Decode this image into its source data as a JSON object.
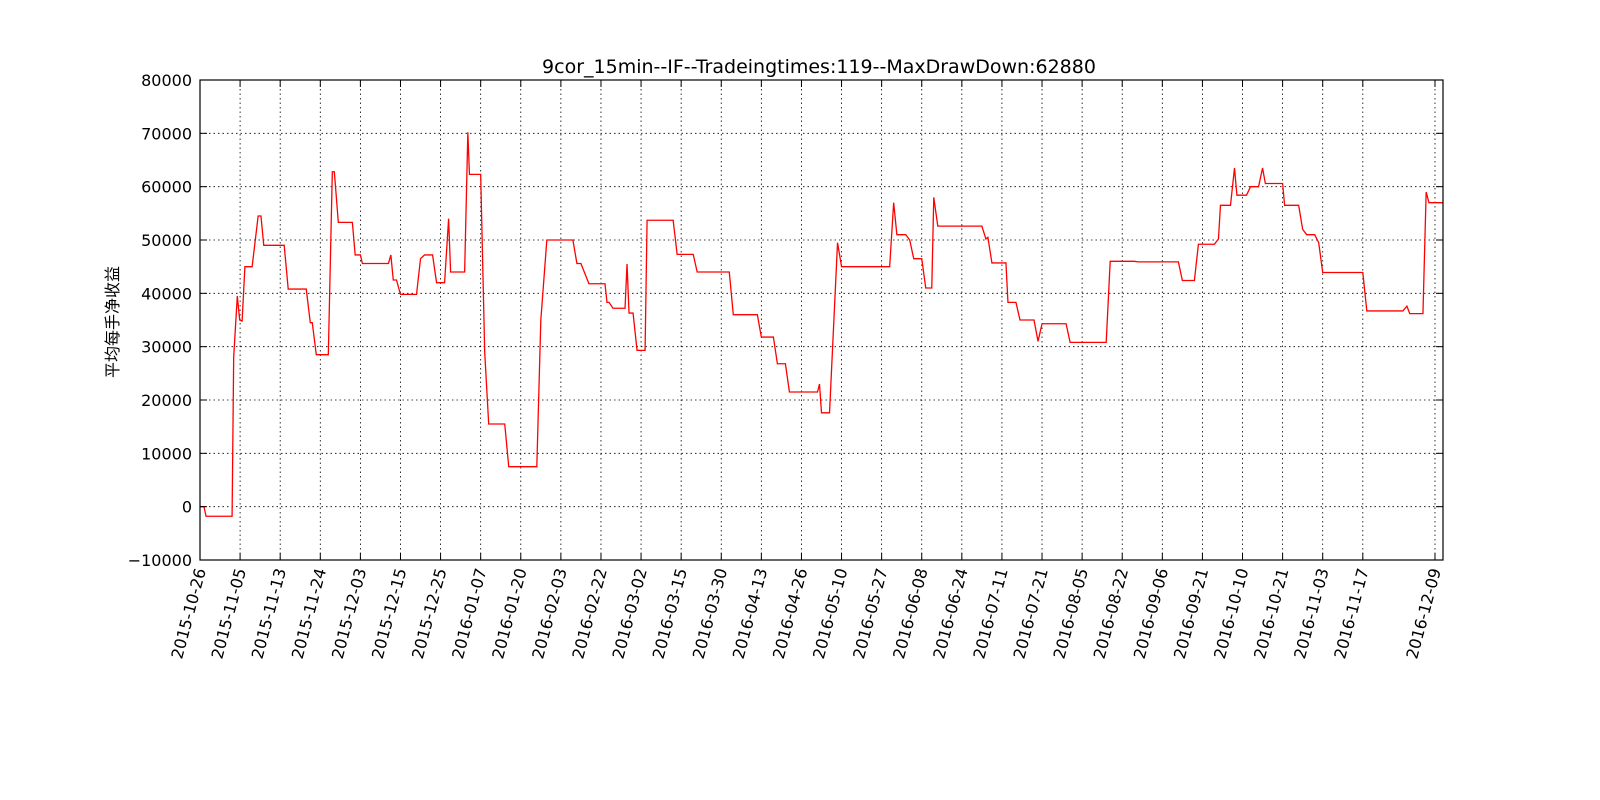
{
  "chart_data": {
    "type": "line",
    "title": "9cor_15min--IF--Tradeingtimes:119--MaxDrawDown:62880",
    "xlabel": "",
    "ylabel": "平均每手净收益",
    "ylim": [
      -10000,
      80000
    ],
    "yticks": [
      "−10000",
      "0",
      "10000",
      "20000",
      "30000",
      "40000",
      "50000",
      "60000",
      "70000",
      "80000"
    ],
    "xticks": [
      "2015-10-26",
      "2015-11-05",
      "2015-11-13",
      "2015-11-24",
      "2015-12-03",
      "2015-12-15",
      "2015-12-25",
      "2016-01-07",
      "2016-01-20",
      "2016-02-03",
      "2016-02-22",
      "2016-03-02",
      "2016-03-15",
      "2016-03-30",
      "2016-04-13",
      "2016-04-26",
      "2016-05-10",
      "2016-05-27",
      "2016-06-08",
      "2016-06-24",
      "2016-07-11",
      "2016-07-21",
      "2016-08-05",
      "2016-08-22",
      "2016-09-06",
      "2016-09-21",
      "2016-10-10",
      "2016-10-21",
      "2016-11-03",
      "2016-11-17",
      "2016-12-09"
    ],
    "x_note": "x values are trade sequence positions; tick labels mark dates at positions 0,10,...,290 and 308",
    "xlim": [
      0,
      310
    ],
    "grid": true,
    "color": "#ff0000",
    "series": [
      {
        "name": "",
        "points": [
          [
            0,
            0
          ],
          [
            1,
            0
          ],
          [
            1.5,
            -1800
          ],
          [
            3,
            -1800
          ],
          [
            8,
            -1800
          ],
          [
            8.4,
            28000
          ],
          [
            9.3,
            39500
          ],
          [
            9.9,
            35000
          ],
          [
            10.5,
            34800
          ],
          [
            11.2,
            45000
          ],
          [
            13,
            45000
          ],
          [
            14.5,
            54500
          ],
          [
            15.2,
            54500
          ],
          [
            15.9,
            49000
          ],
          [
            21,
            49000
          ],
          [
            22,
            40800
          ],
          [
            26.5,
            40800
          ],
          [
            27.5,
            34500
          ],
          [
            28,
            34500
          ],
          [
            29,
            28500
          ],
          [
            32,
            28500
          ],
          [
            33,
            62800
          ],
          [
            33.5,
            62800
          ],
          [
            34.5,
            53300
          ],
          [
            38,
            53300
          ],
          [
            38.7,
            47200
          ],
          [
            40,
            47200
          ],
          [
            40.5,
            45600
          ],
          [
            47,
            45600
          ],
          [
            47.6,
            47200
          ],
          [
            48.2,
            42500
          ],
          [
            49,
            42500
          ],
          [
            50,
            39800
          ],
          [
            54,
            39800
          ],
          [
            55,
            46500
          ],
          [
            56,
            47200
          ],
          [
            58,
            47200
          ],
          [
            59,
            42000
          ],
          [
            61,
            42000
          ],
          [
            62,
            54000
          ],
          [
            62.5,
            44000
          ],
          [
            66,
            44000
          ],
          [
            66.8,
            70200
          ],
          [
            67.2,
            62300
          ],
          [
            70,
            62300
          ],
          [
            71,
            29000
          ],
          [
            72,
            15500
          ],
          [
            76,
            15500
          ],
          [
            77,
            7500
          ],
          [
            84,
            7500
          ],
          [
            85,
            35000
          ],
          [
            86.5,
            50000
          ],
          [
            93,
            50000
          ],
          [
            94,
            45600
          ],
          [
            95,
            45600
          ],
          [
            97,
            41800
          ],
          [
            101,
            41800
          ],
          [
            101.5,
            38300
          ],
          [
            102,
            38300
          ],
          [
            103,
            37200
          ],
          [
            106,
            37200
          ],
          [
            106.5,
            45500
          ],
          [
            107,
            36300
          ],
          [
            108,
            36300
          ],
          [
            109,
            29300
          ],
          [
            111,
            29300
          ],
          [
            111.5,
            53700
          ],
          [
            118,
            53700
          ],
          [
            119,
            47300
          ],
          [
            123,
            47300
          ],
          [
            124,
            44000
          ],
          [
            132,
            44000
          ],
          [
            133,
            36000
          ],
          [
            139,
            36000
          ],
          [
            140,
            31800
          ],
          [
            143,
            31800
          ],
          [
            144,
            26800
          ],
          [
            146,
            26800
          ],
          [
            147,
            21500
          ],
          [
            154,
            21500
          ],
          [
            154.5,
            23000
          ],
          [
            155,
            17600
          ],
          [
            157,
            17600
          ],
          [
            159,
            49500
          ],
          [
            160,
            45000
          ],
          [
            172,
            45000
          ],
          [
            173,
            57000
          ],
          [
            173.8,
            51000
          ],
          [
            176,
            51000
          ],
          [
            177,
            50000
          ],
          [
            178,
            46500
          ],
          [
            180,
            46500
          ],
          [
            181,
            41000
          ],
          [
            182.5,
            41000
          ],
          [
            183,
            58000
          ],
          [
            184,
            52600
          ],
          [
            195,
            52600
          ],
          [
            196,
            50200
          ],
          [
            196.5,
            50500
          ],
          [
            197.5,
            45700
          ],
          [
            201,
            45700
          ],
          [
            201.5,
            38300
          ],
          [
            203.5,
            38300
          ],
          [
            204.5,
            35000
          ],
          [
            208,
            35000
          ],
          [
            209,
            31000
          ],
          [
            210,
            34300
          ],
          [
            216,
            34300
          ],
          [
            217,
            30800
          ],
          [
            226,
            30800
          ],
          [
            227,
            46000
          ],
          [
            233,
            46000
          ],
          [
            234,
            45900
          ],
          [
            244,
            45900
          ],
          [
            245,
            42400
          ],
          [
            248,
            42400
          ],
          [
            249,
            49200
          ],
          [
            253,
            49200
          ],
          [
            254,
            50200
          ],
          [
            254.5,
            56500
          ],
          [
            257,
            56500
          ],
          [
            258,
            63500
          ],
          [
            258.6,
            58400
          ],
          [
            261,
            58400
          ],
          [
            262,
            60000
          ],
          [
            264,
            60000
          ],
          [
            265,
            63500
          ],
          [
            265.7,
            60600
          ],
          [
            269,
            60600
          ],
          [
            270,
            60600
          ],
          [
            270.5,
            56500
          ],
          [
            274,
            56500
          ],
          [
            275,
            52000
          ],
          [
            276,
            51000
          ],
          [
            278,
            51000
          ],
          [
            279,
            49500
          ],
          [
            280,
            43900
          ],
          [
            290,
            43900
          ],
          [
            291,
            36700
          ],
          [
            300,
            36700
          ],
          [
            301,
            37600
          ],
          [
            301.7,
            36200
          ],
          [
            305,
            36200
          ],
          [
            305.8,
            59000
          ],
          [
            306.5,
            57000
          ],
          [
            310,
            57000
          ]
        ]
      }
    ]
  }
}
